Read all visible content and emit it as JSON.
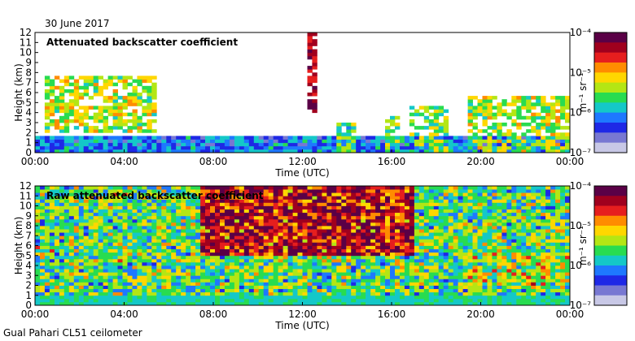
{
  "date": "30 June 2017",
  "footer": "Gual Pahari CL51 ceilometer",
  "colors": {
    "scale": [
      "#c8c8e6",
      "#7878d2",
      "#1e28e6",
      "#1e78ff",
      "#14c8c8",
      "#28dc50",
      "#b4e614",
      "#ffd700",
      "#ff8c00",
      "#e61e1e",
      "#a0001e",
      "#5a0046"
    ]
  },
  "chart_data": [
    {
      "type": "heatmap",
      "title": "Attenuated backscatter coefficient",
      "xlabel": "Time (UTC)",
      "ylabel": "Height (km)",
      "xlim": [
        0,
        24
      ],
      "ylim": [
        0,
        12
      ],
      "xticks": [
        "00:00",
        "04:00",
        "08:00",
        "12:00",
        "16:00",
        "20:00",
        "00:00"
      ],
      "yticks": [
        "0",
        "1",
        "2",
        "3",
        "4",
        "5",
        "6",
        "7",
        "8",
        "9",
        "10",
        "11",
        "12"
      ],
      "colorbar": {
        "label": "m⁻¹ sr⁻¹",
        "ticks": [
          "10⁻⁴",
          "10⁻⁵",
          "10⁻⁶",
          "10⁻⁷"
        ],
        "range_log10": [
          -7,
          -4
        ]
      },
      "features": [
        {
          "name": "surface-layer",
          "t": [
            0,
            24
          ],
          "z": [
            0,
            1.5
          ],
          "level": 0.28
        },
        {
          "name": "early-aerosol-layers",
          "t": [
            0.5,
            5.5
          ],
          "z": [
            2,
            7.5
          ],
          "level": 0.55
        },
        {
          "name": "noon-cirrus",
          "t": [
            12.3,
            12.7
          ],
          "z": [
            4,
            12
          ],
          "level": 0.9
        },
        {
          "name": "convective-cloud-14h",
          "t": [
            13.5,
            14.5
          ],
          "z": [
            0,
            3
          ],
          "level": 0.45
        },
        {
          "name": "convective-cloud-16h",
          "t": [
            15.7,
            16.3
          ],
          "z": [
            0,
            3.5
          ],
          "level": 0.5
        },
        {
          "name": "convective-cloud-17h",
          "t": [
            16.8,
            18.5
          ],
          "z": [
            0,
            4.5
          ],
          "level": 0.5
        },
        {
          "name": "evening-cloud-deck",
          "t": [
            19.5,
            24
          ],
          "z": [
            0,
            5.5
          ],
          "level": 0.55
        }
      ]
    },
    {
      "type": "heatmap",
      "title": "Raw attenuated backscatter coefficient",
      "xlabel": "Time (UTC)",
      "ylabel": "Height (km)",
      "xlim": [
        0,
        24
      ],
      "ylim": [
        0,
        12
      ],
      "xticks": [
        "00:00",
        "04:00",
        "08:00",
        "12:00",
        "16:00",
        "20:00",
        "00:00"
      ],
      "yticks": [
        "0",
        "1",
        "2",
        "3",
        "4",
        "5",
        "6",
        "7",
        "8",
        "9",
        "10",
        "11",
        "12"
      ],
      "colorbar": {
        "label": "m⁻¹ sr⁻¹",
        "ticks": [
          "10⁻⁴",
          "10⁻⁵",
          "10⁻⁶",
          "10⁻⁷"
        ],
        "range_log10": [
          -7,
          -4
        ]
      },
      "features": [
        {
          "name": "daytime-noise",
          "t": [
            7.5,
            17
          ],
          "z": [
            5,
            12
          ],
          "level": 0.85
        },
        {
          "name": "background-noise",
          "t": [
            0,
            24
          ],
          "z": [
            1,
            12
          ],
          "level": 0.45
        },
        {
          "name": "surface-layer",
          "t": [
            0,
            24
          ],
          "z": [
            0,
            1
          ],
          "level": 0.22
        },
        {
          "name": "evening-cloud-deck",
          "t": [
            19.5,
            24
          ],
          "z": [
            2,
            5.3
          ],
          "level": 0.55
        }
      ]
    }
  ]
}
